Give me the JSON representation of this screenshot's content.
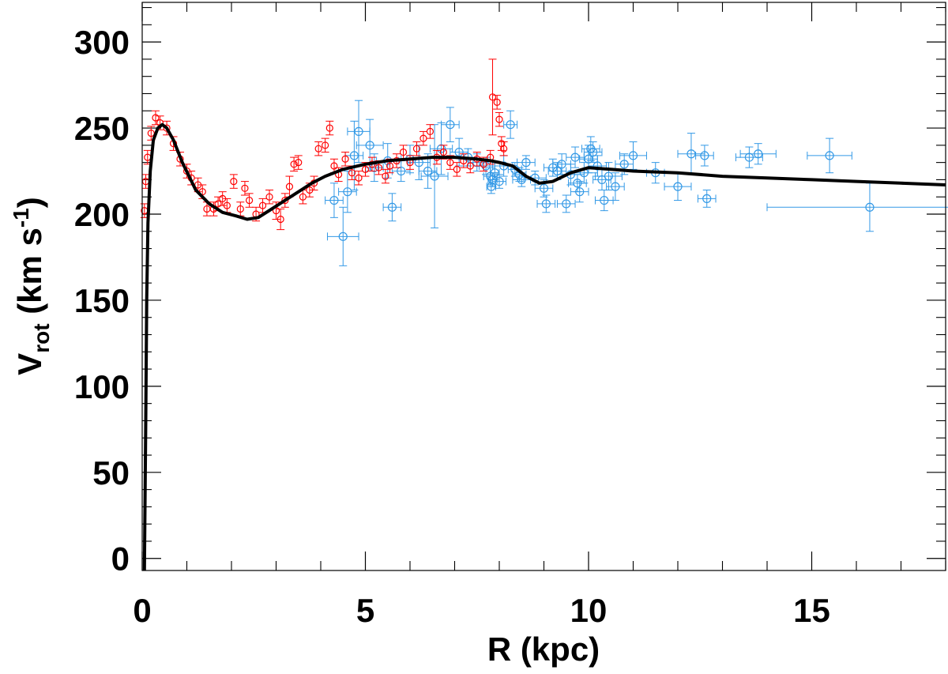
{
  "chart_data": {
    "type": "scatter",
    "title": "",
    "xlabel": "R (kpc)",
    "ylabel": {
      "main": "V",
      "sub": "rot",
      "unit_open": " (km s",
      "unit_sup": "-1",
      "unit_close": ")"
    },
    "xlim": [
      0,
      18
    ],
    "ylim": [
      -7,
      323
    ],
    "x_ticks": [
      0,
      5,
      10,
      15
    ],
    "x_tick_labels": [
      "0",
      "5",
      "10",
      "15"
    ],
    "y_ticks": [
      0,
      50,
      100,
      150,
      200,
      250,
      300
    ],
    "y_tick_labels": [
      "0",
      "50",
      "100",
      "150",
      "200",
      "250",
      "300"
    ],
    "x_minor_step": 1,
    "y_minor_step": 10,
    "grid": false,
    "legend": "none",
    "colors": {
      "inner_points": "#ff0000",
      "outer_points": "#3399e6",
      "model_curve": "#000000",
      "axes": "#000000"
    },
    "series": [
      {
        "type": "line",
        "points": [
          [
            0.05,
            -7
          ],
          [
            0.08,
            80
          ],
          [
            0.1,
            150
          ],
          [
            0.13,
            195
          ],
          [
            0.18,
            225
          ],
          [
            0.25,
            243
          ],
          [
            0.35,
            250
          ],
          [
            0.45,
            252
          ],
          [
            0.55,
            250
          ],
          [
            0.7,
            243
          ],
          [
            0.9,
            230
          ],
          [
            1.2,
            214
          ],
          [
            1.5,
            206
          ],
          [
            1.8,
            201
          ],
          [
            2.1,
            199
          ],
          [
            2.35,
            197
          ],
          [
            2.6,
            198
          ],
          [
            2.9,
            203
          ],
          [
            3.2,
            208
          ],
          [
            3.5,
            213
          ],
          [
            3.8,
            218
          ],
          [
            4.1,
            222
          ],
          [
            4.5,
            226
          ],
          [
            5.0,
            229
          ],
          [
            5.5,
            231
          ],
          [
            6.0,
            232
          ],
          [
            6.5,
            233
          ],
          [
            7.0,
            233
          ],
          [
            7.5,
            232
          ],
          [
            7.8,
            231
          ],
          [
            8.0,
            230
          ],
          [
            8.3,
            228
          ],
          [
            8.6,
            222
          ],
          [
            8.9,
            218
          ],
          [
            9.2,
            219
          ],
          [
            9.6,
            224
          ],
          [
            10.0,
            227
          ],
          [
            10.5,
            226
          ],
          [
            11.0,
            225
          ],
          [
            12.0,
            224
          ],
          [
            13.0,
            222
          ],
          [
            14.0,
            221
          ],
          [
            15.0,
            220
          ],
          [
            16.0,
            219
          ],
          [
            17.0,
            218
          ],
          [
            18.0,
            217
          ]
        ]
      },
      {
        "type": "scatter",
        "points": [
          [
            0.05,
            202,
            0,
            4
          ],
          [
            0.08,
            219,
            0,
            4
          ],
          [
            0.12,
            233,
            0,
            4
          ],
          [
            0.2,
            247,
            0,
            4
          ],
          [
            0.3,
            256,
            0,
            4
          ],
          [
            0.4,
            253,
            0,
            4
          ],
          [
            0.55,
            250,
            0,
            4
          ],
          [
            0.7,
            241,
            0,
            4
          ],
          [
            0.85,
            232,
            0,
            4
          ],
          [
            1.0,
            225,
            0,
            4
          ],
          [
            1.1,
            221,
            0,
            4
          ],
          [
            1.25,
            217,
            0,
            4
          ],
          [
            1.35,
            213,
            0,
            4
          ],
          [
            1.45,
            203,
            0,
            4
          ],
          [
            1.6,
            203,
            0,
            4
          ],
          [
            1.7,
            206,
            0,
            4
          ],
          [
            1.8,
            209,
            0,
            4
          ],
          [
            1.9,
            205,
            0,
            4
          ],
          [
            2.05,
            219,
            0,
            4
          ],
          [
            2.2,
            203,
            0,
            4
          ],
          [
            2.3,
            215,
            0,
            4
          ],
          [
            2.4,
            208,
            0,
            4
          ],
          [
            2.55,
            200,
            0,
            4
          ],
          [
            2.7,
            205,
            0,
            4
          ],
          [
            2.85,
            210,
            0,
            4
          ],
          [
            3.0,
            202,
            0,
            5
          ],
          [
            3.1,
            197,
            0,
            6
          ],
          [
            3.2,
            208,
            0,
            4
          ],
          [
            3.3,
            216,
            0,
            6
          ],
          [
            3.4,
            229,
            0,
            4
          ],
          [
            3.5,
            230,
            0,
            4
          ],
          [
            3.6,
            210,
            0,
            4
          ],
          [
            3.75,
            214,
            0,
            4
          ],
          [
            3.85,
            218,
            0,
            4
          ],
          [
            3.95,
            238,
            0,
            4
          ],
          [
            4.1,
            240,
            0,
            4
          ],
          [
            4.2,
            250,
            0,
            4
          ],
          [
            4.3,
            228,
            0,
            4
          ],
          [
            4.4,
            223,
            0,
            4
          ],
          [
            4.55,
            232,
            0,
            4
          ],
          [
            4.7,
            224,
            0,
            4
          ],
          [
            4.85,
            221,
            0,
            4
          ],
          [
            5.0,
            226,
            0,
            4
          ],
          [
            5.15,
            229,
            0,
            4
          ],
          [
            5.3,
            227,
            0,
            4
          ],
          [
            5.45,
            222,
            0,
            4
          ],
          [
            5.55,
            228,
            0,
            4
          ],
          [
            5.7,
            231,
            0,
            4
          ],
          [
            5.85,
            236,
            0,
            4
          ],
          [
            6.0,
            230,
            0,
            4
          ],
          [
            6.15,
            238,
            0,
            4
          ],
          [
            6.3,
            244,
            0,
            4
          ],
          [
            6.45,
            248,
            0,
            4
          ],
          [
            6.6,
            233,
            0,
            4
          ],
          [
            6.75,
            236,
            0,
            4
          ],
          [
            6.9,
            230,
            0,
            4
          ],
          [
            7.05,
            226,
            0,
            4
          ],
          [
            7.2,
            231,
            0,
            4
          ],
          [
            7.35,
            228,
            0,
            4
          ],
          [
            7.5,
            232,
            0,
            4
          ],
          [
            7.65,
            229,
            0,
            4
          ],
          [
            7.8,
            233,
            0,
            4
          ],
          [
            7.85,
            268,
            0,
            22
          ],
          [
            7.95,
            265,
            0,
            4
          ],
          [
            8.0,
            255,
            0,
            4
          ],
          [
            8.05,
            241,
            0,
            4
          ],
          [
            8.1,
            238,
            0,
            4
          ]
        ]
      },
      {
        "type": "scatter",
        "points": [
          [
            4.3,
            208,
            0.2,
            10
          ],
          [
            4.5,
            187,
            0.35,
            17
          ],
          [
            4.6,
            213,
            0.2,
            12
          ],
          [
            4.75,
            234,
            0.2,
            20
          ],
          [
            4.85,
            248,
            0.25,
            18
          ],
          [
            5.1,
            240,
            0.3,
            15
          ],
          [
            5.2,
            227,
            0.2,
            8
          ],
          [
            5.5,
            231,
            0.25,
            10
          ],
          [
            5.6,
            204,
            0.2,
            8
          ],
          [
            5.8,
            225,
            0.2,
            6
          ],
          [
            6.0,
            232,
            0.2,
            8
          ],
          [
            6.2,
            230,
            0.25,
            10
          ],
          [
            6.4,
            225,
            0.2,
            10
          ],
          [
            6.55,
            222,
            0.3,
            30
          ],
          [
            6.7,
            238,
            0.25,
            15
          ],
          [
            6.9,
            252,
            0.2,
            10
          ],
          [
            7.1,
            236,
            0.2,
            8
          ],
          [
            7.3,
            233,
            0.2,
            5
          ],
          [
            7.5,
            230,
            0.2,
            5
          ],
          [
            7.7,
            228,
            0.15,
            5
          ],
          [
            7.8,
            222,
            0.15,
            5
          ],
          [
            7.82,
            216,
            0.1,
            4
          ],
          [
            7.85,
            220,
            0.1,
            4
          ],
          [
            7.9,
            224,
            0.1,
            4
          ],
          [
            8.0,
            219,
            0.15,
            4
          ],
          [
            8.1,
            228,
            0.2,
            6
          ],
          [
            8.25,
            252,
            0.15,
            8
          ],
          [
            8.35,
            226,
            0.15,
            4
          ],
          [
            8.45,
            223,
            0.15,
            4
          ],
          [
            8.5,
            220,
            0.2,
            4
          ],
          [
            8.6,
            230,
            0.2,
            4
          ],
          [
            8.8,
            221,
            0.25,
            4
          ],
          [
            9.0,
            215,
            0.2,
            5
          ],
          [
            9.05,
            206,
            0.2,
            5
          ],
          [
            9.2,
            227,
            0.2,
            5
          ],
          [
            9.3,
            225,
            0.2,
            5
          ],
          [
            9.4,
            229,
            0.2,
            6
          ],
          [
            9.5,
            206,
            0.2,
            5
          ],
          [
            9.6,
            223,
            0.3,
            6
          ],
          [
            9.7,
            233,
            0.2,
            6
          ],
          [
            9.75,
            218,
            0.2,
            5
          ],
          [
            9.8,
            213,
            0.2,
            6
          ],
          [
            9.9,
            224,
            0.3,
            6
          ],
          [
            10.0,
            232,
            0.2,
            8
          ],
          [
            10.05,
            238,
            0.2,
            7
          ],
          [
            10.1,
            236,
            0.2,
            6
          ],
          [
            10.2,
            228,
            0.2,
            6
          ],
          [
            10.3,
            220,
            0.2,
            6
          ],
          [
            10.35,
            208,
            0.2,
            6
          ],
          [
            10.45,
            222,
            0.3,
            8
          ],
          [
            10.6,
            216,
            0.2,
            8
          ],
          [
            10.8,
            229,
            0.2,
            6
          ],
          [
            11.0,
            234,
            0.3,
            8
          ],
          [
            11.5,
            224,
            0.2,
            6
          ],
          [
            12.0,
            216,
            0.3,
            8
          ],
          [
            12.3,
            235,
            0.3,
            12
          ],
          [
            12.6,
            234,
            0.2,
            6
          ],
          [
            12.65,
            209,
            0.2,
            5
          ],
          [
            13.6,
            233,
            0.3,
            6
          ],
          [
            13.8,
            235,
            0.4,
            6
          ],
          [
            15.4,
            234,
            0.5,
            10
          ],
          [
            16.3,
            204,
            2.3,
            14
          ]
        ]
      }
    ]
  }
}
